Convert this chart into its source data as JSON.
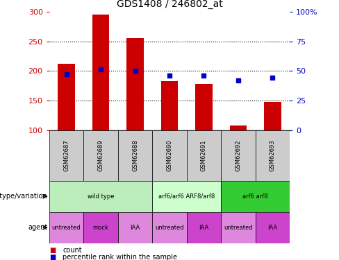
{
  "title": "GDS1408 / 246802_at",
  "samples": [
    "GSM62687",
    "GSM62689",
    "GSM62688",
    "GSM62690",
    "GSM62691",
    "GSM62692",
    "GSM62693"
  ],
  "counts": [
    212,
    295,
    255,
    183,
    178,
    108,
    147
  ],
  "percentile_ranks": [
    47,
    51,
    50,
    46,
    46,
    42,
    44
  ],
  "ylim_left": [
    100,
    300
  ],
  "ylim_right": [
    0,
    100
  ],
  "yticks_left": [
    100,
    150,
    200,
    250,
    300
  ],
  "yticks_right": [
    0,
    25,
    50,
    75,
    100
  ],
  "yticklabels_right": [
    "0",
    "25",
    "50",
    "75",
    "100%"
  ],
  "bar_color": "#cc0000",
  "dot_color": "#0000cc",
  "bar_bottom": 100,
  "genotype_groups": [
    {
      "label": "wild type",
      "span": [
        0,
        3
      ],
      "color": "#bbeebb"
    },
    {
      "label": "arf6/arf6 ARF8/arf8",
      "span": [
        3,
        5
      ],
      "color": "#ccffcc"
    },
    {
      "label": "arf6 arf8",
      "span": [
        5,
        7
      ],
      "color": "#33cc33"
    }
  ],
  "agent_groups": [
    {
      "label": "untreated",
      "span": [
        0,
        1
      ],
      "color": "#dd88dd"
    },
    {
      "label": "mock",
      "span": [
        1,
        2
      ],
      "color": "#cc44cc"
    },
    {
      "label": "IAA",
      "span": [
        2,
        3
      ],
      "color": "#dd88dd"
    },
    {
      "label": "untreated",
      "span": [
        3,
        4
      ],
      "color": "#dd88dd"
    },
    {
      "label": "IAA",
      "span": [
        4,
        5
      ],
      "color": "#cc44cc"
    },
    {
      "label": "untreated",
      "span": [
        5,
        6
      ],
      "color": "#dd88dd"
    },
    {
      "label": "IAA",
      "span": [
        6,
        7
      ],
      "color": "#cc44cc"
    }
  ],
  "legend_count_label": "count",
  "legend_pct_label": "percentile rank within the sample",
  "genotype_label": "genotype/variation",
  "agent_label": "agent",
  "background_color": "#ffffff",
  "plot_bg_color": "#ffffff",
  "left_tick_color": "#cc0000",
  "right_tick_color": "#0000cc",
  "sample_bg_color": "#cccccc",
  "dotgrid_hlines": [
    150,
    200,
    250
  ]
}
